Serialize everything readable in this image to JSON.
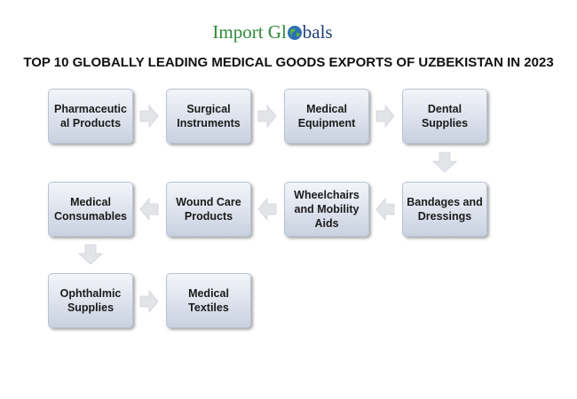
{
  "header": {
    "brand_start": "Import Gl",
    "brand_end": "bals",
    "title": "TOP 10 GLOBALLY LEADING MEDICAL GOODS EXPORTS OF UZBEKISTAN IN 2023"
  },
  "nodes": [
    {
      "label": "Pharmaceutic\nal Products"
    },
    {
      "label": "Surgical\nInstruments"
    },
    {
      "label": "Medical\nEquipment"
    },
    {
      "label": "Dental\nSupplies"
    },
    {
      "label": "Bandages and\nDressings"
    },
    {
      "label": "Wheelchairs\nand Mobility\nAids"
    },
    {
      "label": "Wound Care\nProducts"
    },
    {
      "label": "Medical\nConsumables"
    },
    {
      "label": "Ophthalmic\nSupplies"
    },
    {
      "label": "Medical\nTextiles"
    }
  ]
}
